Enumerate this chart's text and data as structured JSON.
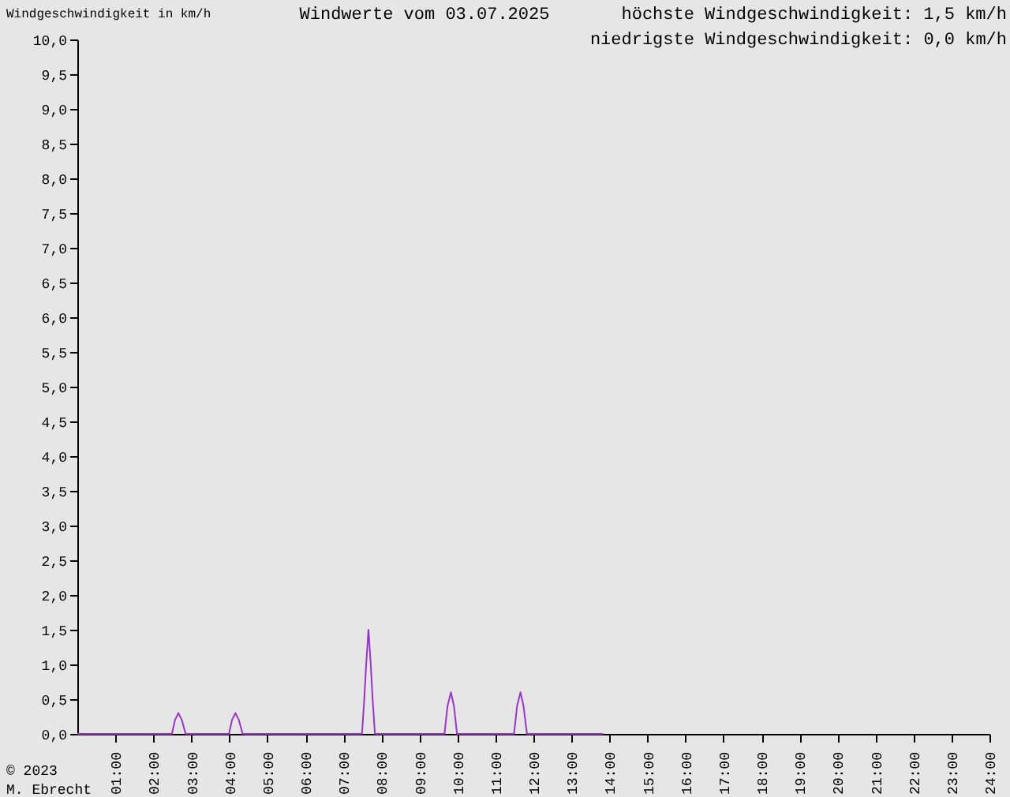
{
  "chart_data": {
    "type": "line",
    "title": "Windwerte vom 03.07.2025",
    "ylabel": "Windgeschwindigkeit in km/h",
    "annotations": [
      "höchste Windgeschwindigkeit: 1,5 km/h",
      "niedrigste Windgeschwindigkeit: 0,0 km/h",
      "© 2023",
      "M. Ebrecht"
    ],
    "series": [
      {
        "color": "#9933cc",
        "x": [
          0,
          2.49,
          2.57,
          2.66,
          2.75,
          2.85,
          3.99,
          4.07,
          4.16,
          4.25,
          4.35,
          7.49,
          7.55,
          7.6,
          7.66,
          7.72,
          7.77,
          7.83,
          9.66,
          9.74,
          9.83,
          9.91,
          9.99,
          11.49,
          11.57,
          11.66,
          11.74,
          11.83,
          13.84
        ],
        "values": [
          0,
          0,
          0.2,
          0.3,
          0.2,
          0,
          0,
          0.2,
          0.3,
          0.2,
          0,
          0,
          0.5,
          1.0,
          1.5,
          1.0,
          0.5,
          0,
          0,
          0.4,
          0.6,
          0.4,
          0,
          0,
          0.4,
          0.6,
          0.4,
          0,
          0
        ]
      }
    ],
    "xlim": [
      0,
      24
    ],
    "xticks": [
      {
        "value": 1,
        "label": "01:00"
      },
      {
        "value": 2,
        "label": "02:00"
      },
      {
        "value": 3,
        "label": "03:00"
      },
      {
        "value": 4,
        "label": "04:00"
      },
      {
        "value": 5,
        "label": "05:00"
      },
      {
        "value": 6,
        "label": "06:00"
      },
      {
        "value": 7,
        "label": "07:00"
      },
      {
        "value": 8,
        "label": "08:00"
      },
      {
        "value": 9,
        "label": "09:00"
      },
      {
        "value": 10,
        "label": "10:00"
      },
      {
        "value": 11,
        "label": "11:00"
      },
      {
        "value": 12,
        "label": "12:00"
      },
      {
        "value": 13,
        "label": "13:00"
      },
      {
        "value": 14,
        "label": "14:00"
      },
      {
        "value": 15,
        "label": "15:00"
      },
      {
        "value": 16,
        "label": "16:00"
      },
      {
        "value": 17,
        "label": "17:00"
      },
      {
        "value": 18,
        "label": "18:00"
      },
      {
        "value": 19,
        "label": "19:00"
      },
      {
        "value": 20,
        "label": "20:00"
      },
      {
        "value": 21,
        "label": "21:00"
      },
      {
        "value": 22,
        "label": "22:00"
      },
      {
        "value": 23,
        "label": "23:00"
      },
      {
        "value": 24,
        "label": "24:00"
      }
    ],
    "ylim": [
      0,
      10
    ],
    "yticks": [
      {
        "value": 0,
        "label": "0,0"
      },
      {
        "value": 0.5,
        "label": "0,5"
      },
      {
        "value": 1,
        "label": "1,0"
      },
      {
        "value": 1.5,
        "label": "1,5"
      },
      {
        "value": 2,
        "label": "2,0"
      },
      {
        "value": 2.5,
        "label": "2,5"
      },
      {
        "value": 3,
        "label": "3,0"
      },
      {
        "value": 3.5,
        "label": "3,5"
      },
      {
        "value": 4,
        "label": "4,0"
      },
      {
        "value": 4.5,
        "label": "4,5"
      },
      {
        "value": 5,
        "label": "5,0"
      },
      {
        "value": 5.5,
        "label": "5,5"
      },
      {
        "value": 6,
        "label": "6,0"
      },
      {
        "value": 6.5,
        "label": "6,5"
      },
      {
        "value": 7,
        "label": "7,0"
      },
      {
        "value": 7.5,
        "label": "7,5"
      },
      {
        "value": 8,
        "label": "8,0"
      },
      {
        "value": 8.5,
        "label": "8,5"
      },
      {
        "value": 9,
        "label": "9,0"
      },
      {
        "value": 9.5,
        "label": "9,5"
      },
      {
        "value": 10,
        "label": "10,0"
      }
    ],
    "grid": false,
    "legend": false,
    "marker": "none",
    "line_style": "solid"
  }
}
